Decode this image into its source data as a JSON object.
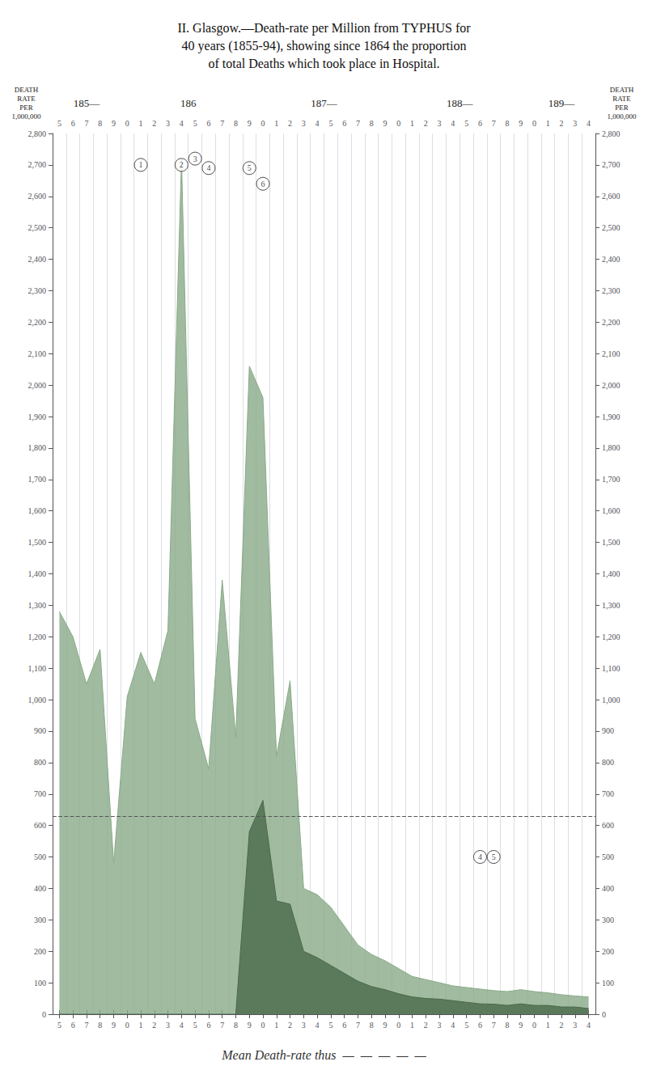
{
  "chart_data": {
    "type": "area",
    "title": "II. Glasgow.—Death-rate per Million from TYPHUS for\n40 years (1855-94), showing since 1864 the proportion\nof total Deaths which took place in Hospital.",
    "categories": [
      "5",
      "6",
      "7",
      "8",
      "9",
      "0",
      "1",
      "2",
      "3",
      "4",
      "5",
      "6",
      "7",
      "8",
      "9",
      "0",
      "1",
      "2",
      "3",
      "4",
      "5",
      "6",
      "7",
      "8",
      "9",
      "0",
      "1",
      "2",
      "3",
      "4",
      "5",
      "6",
      "7",
      "8",
      "9",
      "0",
      "1",
      "2",
      "3",
      "4"
    ],
    "series": [
      {
        "type": "area",
        "color": "#8aaa88",
        "values": [
          1280,
          1200,
          1050,
          1160,
          480,
          1010,
          1150,
          1050,
          1220,
          2720,
          940,
          780,
          1380,
          880,
          2060,
          1960,
          820,
          1060,
          400,
          380,
          340,
          280,
          220,
          190,
          170,
          145,
          120,
          110,
          100,
          90,
          85,
          80,
          75,
          72,
          78,
          72,
          68,
          62,
          58,
          55
        ]
      },
      {
        "type": "area",
        "color": "#4a6a4a",
        "values": [
          0,
          0,
          0,
          0,
          0,
          0,
          0,
          0,
          0,
          0,
          0,
          0,
          0,
          0,
          580,
          680,
          360,
          350,
          200,
          180,
          155,
          130,
          105,
          88,
          78,
          65,
          55,
          50,
          48,
          43,
          38,
          33,
          32,
          28,
          33,
          28,
          28,
          23,
          23,
          18
        ]
      }
    ],
    "ylim": [
      0,
      2800
    ],
    "yticks": [
      0,
      100,
      200,
      300,
      400,
      500,
      600,
      700,
      800,
      900,
      {
        "value": 1000,
        "label": "1,000"
      },
      {
        "value": 1100,
        "label": "1,100"
      },
      {
        "value": 1200,
        "label": "1,200"
      },
      {
        "value": 1300,
        "label": "1,300"
      },
      {
        "value": 1400,
        "label": "1,400"
      },
      {
        "value": 1500,
        "label": "1,500"
      },
      {
        "value": 1600,
        "label": "1,600"
      },
      {
        "value": 1700,
        "label": "1,700"
      },
      {
        "value": 1800,
        "label": "1,800"
      },
      {
        "value": 1900,
        "label": "1,900"
      },
      {
        "value": 2000,
        "label": "2,000"
      },
      {
        "value": 2100,
        "label": "2,100"
      },
      {
        "value": 2200,
        "label": "2,200"
      },
      {
        "value": 2300,
        "label": "2,300"
      },
      {
        "value": 2400,
        "label": "2,400"
      },
      {
        "value": 2500,
        "label": "2,500"
      },
      {
        "value": 2600,
        "label": "2,600"
      },
      {
        "value": 2700,
        "label": "2,700"
      },
      {
        "value": 2800,
        "label": "2,800"
      }
    ],
    "y2lim": [
      0,
      2800
    ],
    "y2ticks": [
      0,
      100,
      200,
      300,
      400,
      500,
      600,
      700,
      800,
      900,
      {
        "value": 1000,
        "label": "1,000"
      },
      {
        "value": 1100,
        "label": "1,100"
      },
      {
        "value": 1200,
        "label": "1,200"
      },
      {
        "value": 1300,
        "label": "1,300"
      },
      {
        "value": 1400,
        "label": "1,400"
      },
      {
        "value": 1500,
        "label": "1,500"
      },
      {
        "value": 1600,
        "label": "1,600"
      },
      {
        "value": 1700,
        "label": "1,700"
      },
      {
        "value": 1800,
        "label": "1,800"
      },
      {
        "value": 1900,
        "label": "1,900"
      },
      {
        "value": 2000,
        "label": "2,000"
      },
      {
        "value": 2100,
        "label": "2,100"
      },
      {
        "value": 2200,
        "label": "2,200"
      },
      {
        "value": 2300,
        "label": "2,300"
      },
      {
        "value": 2400,
        "label": "2,400"
      },
      {
        "value": 2500,
        "label": "2,500"
      },
      {
        "value": 2600,
        "label": "2,600"
      },
      {
        "value": 2700,
        "label": "2,700"
      },
      {
        "value": 2800,
        "label": "2,800"
      }
    ],
    "ylabel": "DEATH\nRATE\nPER\n1,000,000",
    "y2label": "DEATH\nRATE\nPER\n1,000,000",
    "grid": true,
    "header_rows": [
      {
        "label": "185—",
        "start": 0,
        "end": 4
      },
      {
        "label": "186",
        "start": 5,
        "end": 14
      },
      {
        "label": "187—",
        "start": 15,
        "end": 24
      },
      {
        "label": "188—",
        "start": 25,
        "end": 34
      },
      {
        "label": "189—",
        "start": 35,
        "end": 39
      }
    ],
    "annotations": [
      {
        "text": "1",
        "x": 6,
        "y": 2700
      },
      {
        "text": "2",
        "x": 9,
        "y": 2700
      },
      {
        "text": "3",
        "x": 10,
        "y": 2720
      },
      {
        "text": "4",
        "x": 11,
        "y": 2690
      },
      {
        "text": "5",
        "x": 14,
        "y": 2690
      },
      {
        "text": "6",
        "x": 15,
        "y": 2640
      },
      {
        "text": "4",
        "x": 31,
        "y": 500
      },
      {
        "text": "5",
        "x": 32,
        "y": 500
      }
    ],
    "reference_lines": [
      {
        "value": 630,
        "color": "#555555",
        "line_style": "dashed"
      }
    ],
    "caption": "Mean Death-rate thus  —  —  —  —  —"
  }
}
